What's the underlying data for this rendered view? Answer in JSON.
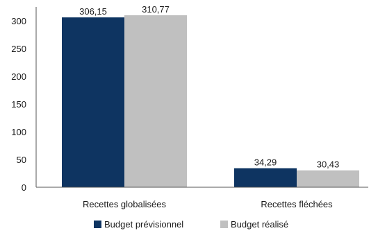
{
  "chart_data": {
    "type": "bar",
    "categories": [
      "Recettes globalisées",
      "Recettes fléchées"
    ],
    "series": [
      {
        "name": "Budget prévisionnel",
        "color": "#0e3461",
        "values": [
          306.15,
          34.29
        ],
        "labels": [
          "306,15",
          "34,29"
        ]
      },
      {
        "name": "Budget réalisé",
        "color": "#c0c0c0",
        "values": [
          310.77,
          30.43
        ],
        "labels": [
          "310,77",
          "30,43"
        ]
      }
    ],
    "ylim": [
      0,
      300
    ],
    "yticks": [
      0,
      50,
      100,
      150,
      200,
      250,
      300
    ],
    "grid": false,
    "legend_position": "bottom-center",
    "title": "",
    "xlabel": "",
    "ylabel": ""
  }
}
